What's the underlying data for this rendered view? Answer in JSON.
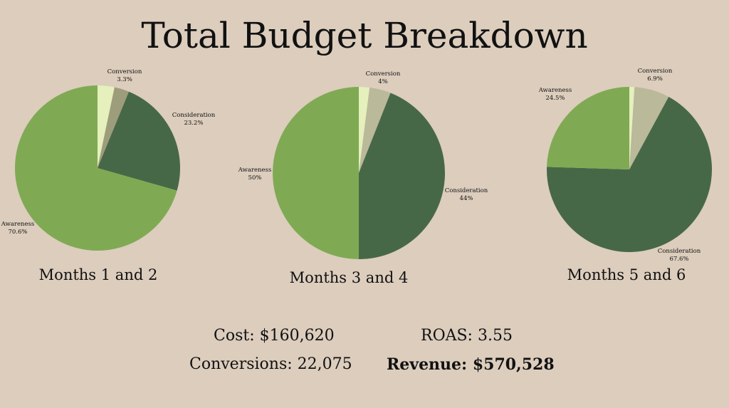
{
  "title": "Total Budget Breakdown",
  "chart_data": [
    {
      "type": "pie",
      "title": "Months 1 and 2",
      "slices": [
        {
          "label": "Conversion",
          "value": 3.3,
          "display": "3.3%",
          "color": "#e5f0bd"
        },
        {
          "label": "",
          "value": 2.9,
          "display": "",
          "color": "#9d9d7b"
        },
        {
          "label": "Consideration",
          "value": 23.2,
          "display": "23.2%",
          "color": "#476847"
        },
        {
          "label": "Awareness",
          "value": 70.6,
          "display": "70.6%",
          "color": "#7faa53"
        }
      ]
    },
    {
      "type": "pie",
      "title": "Months 3 and 4",
      "slices": [
        {
          "label": "",
          "value": 2.0,
          "display": "",
          "color": "#e5f0bd"
        },
        {
          "label": "Conversion",
          "value": 4,
          "display": "4%",
          "color": "#bab99a"
        },
        {
          "label": "Consideration",
          "value": 44,
          "display": "44%",
          "color": "#476847"
        },
        {
          "label": "Awareness",
          "value": 50,
          "display": "50%",
          "color": "#7faa53"
        }
      ]
    },
    {
      "type": "pie",
      "title": "Months 5 and 6",
      "slices": [
        {
          "label": "",
          "value": 1.0,
          "display": "",
          "color": "#e5f0bd"
        },
        {
          "label": "Conversion",
          "value": 6.9,
          "display": "6.9%",
          "color": "#bab99a"
        },
        {
          "label": "Consideration",
          "value": 67.6,
          "display": "67.6%",
          "color": "#476847"
        },
        {
          "label": "Awareness",
          "value": 24.5,
          "display": "24.5%",
          "color": "#7faa53"
        }
      ]
    }
  ],
  "stats": {
    "cost": "Cost: $160,620",
    "roas": "ROAS: 3.55",
    "conversions": "Conversions: 22,075",
    "revenue": "Revenue: $570,528"
  }
}
